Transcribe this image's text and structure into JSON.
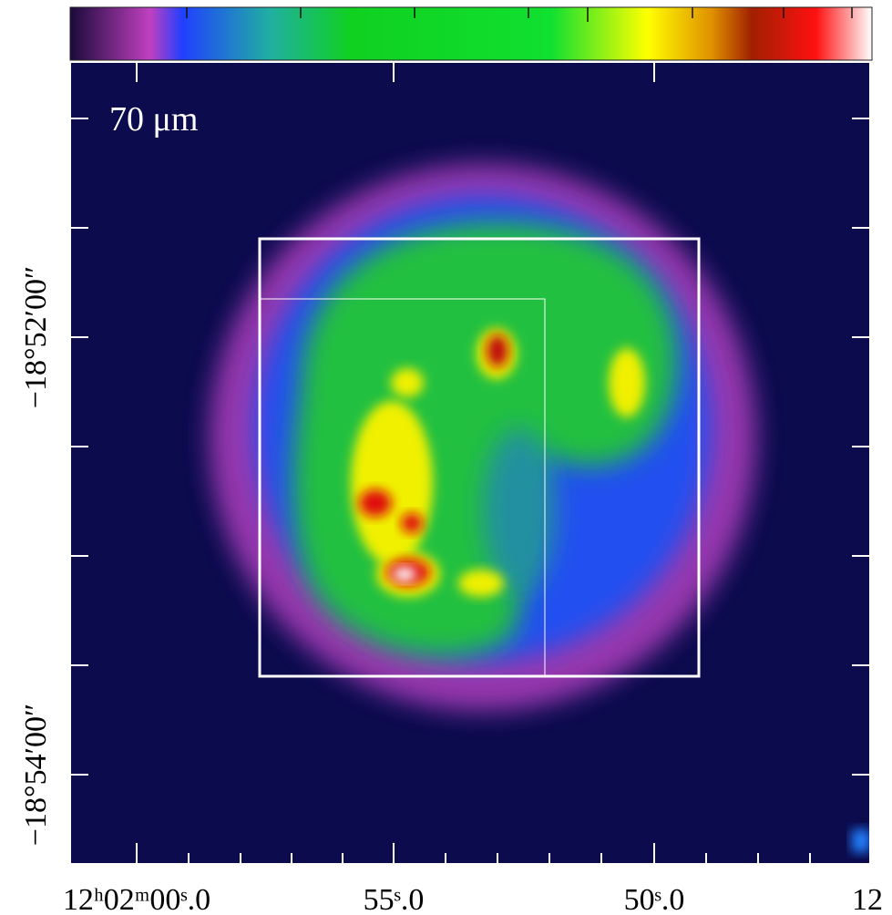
{
  "image": {
    "band_label": "70 μm",
    "y_axis": {
      "labels": [
        "−18°52′00″",
        "−18°54′00″"
      ]
    },
    "x_axis": {
      "labels": [
        "12ʰ02ᵐ00ˢ.0",
        "55ˢ.0",
        "50ˢ.0",
        "12"
      ]
    }
  }
}
